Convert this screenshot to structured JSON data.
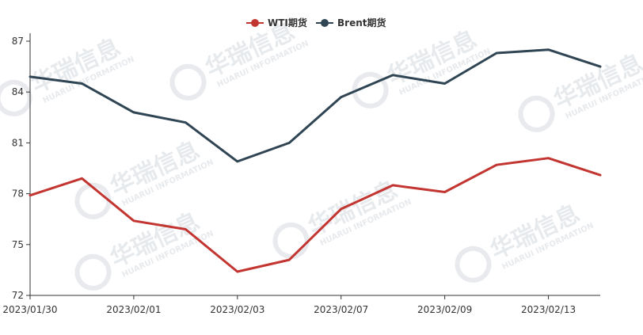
{
  "chart_data": {
    "type": "line",
    "x": [
      "2023/01/30",
      "2023/01/31",
      "2023/02/01",
      "2023/02/02",
      "2023/02/03",
      "2023/02/06",
      "2023/02/07",
      "2023/02/08",
      "2023/02/09",
      "2023/02/10",
      "2023/02/13",
      "2023/02/14"
    ],
    "x_tick_labels": [
      "2023/01/30",
      "2023/02/01",
      "2023/02/03",
      "2023/02/07",
      "2023/02/09",
      "2023/02/13"
    ],
    "series": [
      {
        "name": "WTI期货",
        "color": "#c23531",
        "values": [
          77.9,
          78.9,
          76.4,
          75.9,
          73.4,
          74.1,
          77.1,
          78.5,
          78.1,
          79.7,
          80.1,
          79.1
        ]
      },
      {
        "name": "Brent期货",
        "color": "#2f4554",
        "values": [
          84.9,
          84.5,
          82.8,
          82.2,
          79.9,
          81.0,
          83.7,
          85.0,
          84.5,
          86.3,
          86.5,
          85.5
        ]
      }
    ],
    "ylim": [
      72,
      87
    ],
    "y_ticks": [
      72,
      75,
      78,
      81,
      84,
      87
    ],
    "legend_position": "top-center",
    "grid": false
  },
  "watermark": {
    "text": "华瑞信息",
    "subtext": "HUARUI INFORMATION"
  }
}
